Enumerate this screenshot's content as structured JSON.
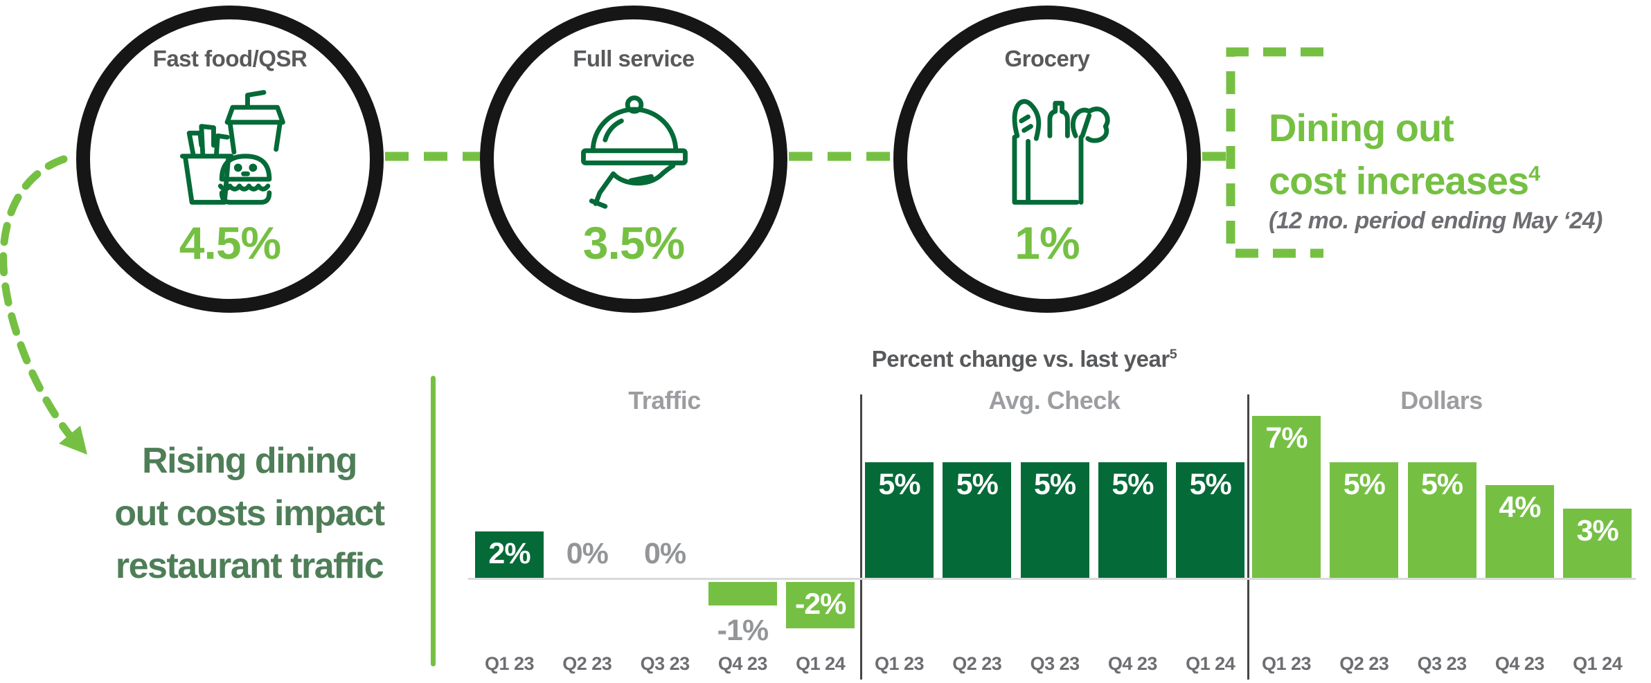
{
  "colors": {
    "dark_green": "#046a38",
    "light_green": "#75c043",
    "headline_green": "#4e7e57",
    "title_gray": "#58595b",
    "label_gray": "#9b9da0",
    "zero_gray": "#939598",
    "axis_gray": "#6d6e71",
    "baseline_gray": "#d9dadb",
    "divider_gray": "#454545"
  },
  "header": {
    "categories": [
      {
        "label": "Fast food/QSR",
        "value": "4.5%",
        "icon": "fast-food-icon"
      },
      {
        "label": "Full service",
        "value": "3.5%",
        "icon": "cloche-icon"
      },
      {
        "label": "Grocery",
        "value": "1%",
        "icon": "grocery-bag-icon"
      }
    ],
    "callout": {
      "line1": "Dining out",
      "line2": "cost increases",
      "sup": "4",
      "subtitle": "(12 mo. period ending May ‘24)"
    }
  },
  "headline": {
    "line1": "Rising dining",
    "line2": "out costs impact",
    "line3": "restaurant traffic"
  },
  "chart_data": {
    "type": "bar",
    "title": "Percent change vs. last year",
    "title_sup": "5",
    "unit": "percent change vs. last year",
    "grid": false,
    "legend_position": "none",
    "baseline": 0,
    "ylim": [
      -3,
      8
    ],
    "categories": [
      "Q1 23",
      "Q2 23",
      "Q3 23",
      "Q4 23",
      "Q1 24"
    ],
    "series": [
      {
        "name": "Traffic",
        "values": [
          2,
          0,
          0,
          -1,
          -2
        ],
        "labels": [
          "2%",
          "0%",
          "0%",
          "-1%",
          "-2%"
        ],
        "positive_color": "dark_green",
        "negative_color": "light_green"
      },
      {
        "name": "Avg. Check",
        "values": [
          5,
          5,
          5,
          5,
          5
        ],
        "labels": [
          "5%",
          "5%",
          "5%",
          "5%",
          "5%"
        ],
        "positive_color": "dark_green",
        "negative_color": "light_green"
      },
      {
        "name": "Dollars",
        "values": [
          7,
          5,
          5,
          4,
          3
        ],
        "labels": [
          "7%",
          "5%",
          "5%",
          "4%",
          "3%"
        ],
        "positive_color": "light_green",
        "negative_color": "light_green"
      }
    ]
  }
}
